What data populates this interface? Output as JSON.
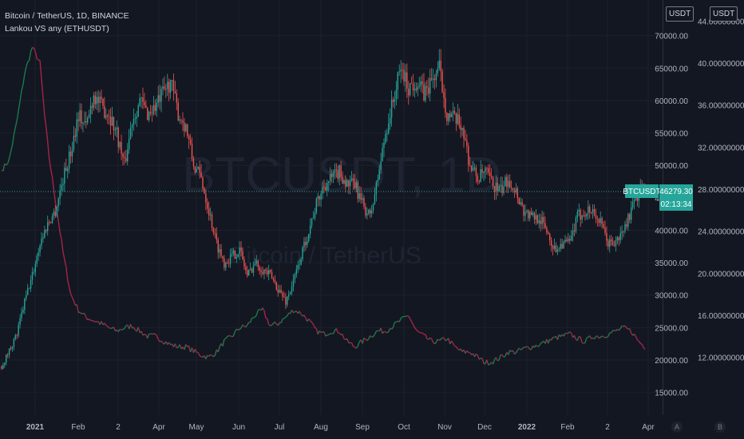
{
  "legend": {
    "main": "Bitcoin / TetherUS, 1D, BINANCE",
    "indicator": "Lankou VS any (ETHUSDT)"
  },
  "watermark": {
    "symbol": "BTCUSDT, 1D",
    "name": "Bitcoin / TetherUS"
  },
  "scale_buttons": {
    "left": "USDT",
    "right": "USDT"
  },
  "bottom_buttons": {
    "a": "A",
    "b": "B"
  },
  "price_tag": {
    "symbol": "BTCUSDT",
    "price": "46279.30",
    "countdown": "02:13:34"
  },
  "colors": {
    "up": "#26a69a",
    "down": "#ef5350",
    "background": "#131722",
    "indicator_up": "#1b7a4a",
    "indicator_down": "#a3244a"
  },
  "chart_data": {
    "type": "candlestick",
    "price_ticks": [
      "70000.00",
      "65000.00",
      "60000.00",
      "55000.00",
      "50000.00",
      "45000.00",
      "40000.00",
      "35000.00",
      "30000.00",
      "25000.00",
      "20000.00",
      "15000.00"
    ],
    "ratio_ticks": [
      "44.0000000000",
      "40.0000000000",
      "36.0000000000",
      "32.0000000000",
      "28.0000000000",
      "24.0000000000",
      "20.0000000000",
      "16.0000000000",
      "12.0000000000"
    ],
    "x_ticks": [
      "2021",
      "Feb",
      "2",
      "Apr",
      "May",
      "Jun",
      "Jul",
      "Aug",
      "Sep",
      "Oct",
      "Nov",
      "Dec",
      "2022",
      "Feb",
      "2",
      "Apr"
    ],
    "price_ylim": [
      11500,
      75500
    ],
    "ratio_ylim": [
      6.5,
      46.0
    ],
    "btc_anchors": [
      [
        0,
        19000
      ],
      [
        5,
        21500
      ],
      [
        10,
        24000
      ],
      [
        15,
        29000
      ],
      [
        20,
        33000
      ],
      [
        25,
        38000
      ],
      [
        30,
        41000
      ],
      [
        35,
        43000
      ],
      [
        40,
        48000
      ],
      [
        45,
        52000
      ],
      [
        50,
        58000
      ],
      [
        55,
        56000
      ],
      [
        60,
        61000
      ],
      [
        65,
        59000
      ],
      [
        70,
        58000
      ],
      [
        75,
        55000
      ],
      [
        80,
        50000
      ],
      [
        85,
        57000
      ],
      [
        90,
        60000
      ],
      [
        95,
        58000
      ],
      [
        100,
        59000
      ],
      [
        105,
        61000
      ],
      [
        110,
        63000
      ],
      [
        115,
        58000
      ],
      [
        120,
        56000
      ],
      [
        125,
        50000
      ],
      [
        130,
        48000
      ],
      [
        135,
        43000
      ],
      [
        140,
        38000
      ],
      [
        145,
        35000
      ],
      [
        150,
        36000
      ],
      [
        155,
        37000
      ],
      [
        160,
        33000
      ],
      [
        165,
        35000
      ],
      [
        170,
        34000
      ],
      [
        175,
        33000
      ],
      [
        180,
        31000
      ],
      [
        185,
        29000
      ],
      [
        190,
        32000
      ],
      [
        195,
        36000
      ],
      [
        200,
        40000
      ],
      [
        205,
        44000
      ],
      [
        210,
        47000
      ],
      [
        215,
        48000
      ],
      [
        220,
        49000
      ],
      [
        225,
        47000
      ],
      [
        230,
        47000
      ],
      [
        235,
        44000
      ],
      [
        240,
        42000
      ],
      [
        245,
        48000
      ],
      [
        250,
        55000
      ],
      [
        255,
        60000
      ],
      [
        260,
        65000
      ],
      [
        265,
        62000
      ],
      [
        270,
        63000
      ],
      [
        275,
        61000
      ],
      [
        280,
        63000
      ],
      [
        285,
        65000
      ],
      [
        290,
        58000
      ],
      [
        295,
        57000
      ],
      [
        300,
        56000
      ],
      [
        305,
        50000
      ],
      [
        310,
        48000
      ],
      [
        315,
        49000
      ],
      [
        320,
        47000
      ],
      [
        325,
        46000
      ],
      [
        330,
        48000
      ],
      [
        335,
        46000
      ],
      [
        340,
        43000
      ],
      [
        345,
        42000
      ],
      [
        350,
        42000
      ],
      [
        355,
        40000
      ],
      [
        360,
        37000
      ],
      [
        365,
        38000
      ],
      [
        370,
        38000
      ],
      [
        375,
        42000
      ],
      [
        380,
        43000
      ],
      [
        385,
        43000
      ],
      [
        390,
        41000
      ],
      [
        395,
        38000
      ],
      [
        400,
        38000
      ],
      [
        405,
        40000
      ],
      [
        410,
        43000
      ],
      [
        415,
        46000
      ],
      [
        419,
        46279
      ]
    ],
    "ratio_anchors": [
      [
        0,
        29.8
      ],
      [
        5,
        30.8
      ],
      [
        10,
        34.5
      ],
      [
        15,
        39.0
      ],
      [
        20,
        41.5
      ],
      [
        25,
        40.0
      ],
      [
        28,
        35.0
      ],
      [
        31,
        31.0
      ],
      [
        34,
        28.0
      ],
      [
        37,
        25.0
      ],
      [
        40,
        22.0
      ],
      [
        45,
        18.0
      ],
      [
        50,
        16.5
      ],
      [
        55,
        15.8
      ],
      [
        60,
        15.5
      ],
      [
        65,
        15.2
      ],
      [
        70,
        14.8
      ],
      [
        75,
        14.5
      ],
      [
        80,
        14.8
      ],
      [
        85,
        15.0
      ],
      [
        90,
        14.5
      ],
      [
        95,
        14.0
      ],
      [
        100,
        14.0
      ],
      [
        105,
        13.6
      ],
      [
        110,
        13.2
      ],
      [
        115,
        13.0
      ],
      [
        120,
        13.0
      ],
      [
        125,
        12.6
      ],
      [
        130,
        12.2
      ],
      [
        135,
        12.0
      ],
      [
        140,
        12.5
      ],
      [
        145,
        13.5
      ],
      [
        150,
        14.0
      ],
      [
        155,
        14.8
      ],
      [
        160,
        15.0
      ],
      [
        165,
        16.0
      ],
      [
        170,
        16.5
      ],
      [
        175,
        15.0
      ],
      [
        180,
        15.2
      ],
      [
        185,
        15.8
      ],
      [
        190,
        16.5
      ],
      [
        195,
        16.2
      ],
      [
        200,
        15.5
      ],
      [
        205,
        14.5
      ],
      [
        210,
        14.2
      ],
      [
        215,
        14.5
      ],
      [
        220,
        14.5
      ],
      [
        225,
        13.5
      ],
      [
        230,
        13.0
      ],
      [
        235,
        13.5
      ],
      [
        240,
        14.0
      ],
      [
        245,
        14.5
      ],
      [
        250,
        14.5
      ],
      [
        255,
        15.0
      ],
      [
        260,
        15.5
      ],
      [
        265,
        16.0
      ],
      [
        270,
        14.5
      ],
      [
        275,
        14.0
      ],
      [
        280,
        13.5
      ],
      [
        285,
        13.5
      ],
      [
        290,
        13.8
      ],
      [
        295,
        13.0
      ],
      [
        300,
        12.5
      ],
      [
        305,
        12.5
      ],
      [
        310,
        12.0
      ],
      [
        315,
        11.5
      ],
      [
        320,
        11.6
      ],
      [
        325,
        12.0
      ],
      [
        330,
        12.5
      ],
      [
        335,
        12.5
      ],
      [
        340,
        12.8
      ],
      [
        345,
        13.0
      ],
      [
        350,
        13.2
      ],
      [
        355,
        13.5
      ],
      [
        360,
        13.8
      ],
      [
        365,
        14.0
      ],
      [
        370,
        14.2
      ],
      [
        375,
        13.8
      ],
      [
        380,
        13.5
      ],
      [
        385,
        14.0
      ],
      [
        390,
        14.0
      ],
      [
        395,
        14.2
      ],
      [
        400,
        14.5
      ],
      [
        405,
        14.8
      ],
      [
        410,
        14.5
      ],
      [
        415,
        13.5
      ],
      [
        419,
        13.0
      ]
    ]
  }
}
